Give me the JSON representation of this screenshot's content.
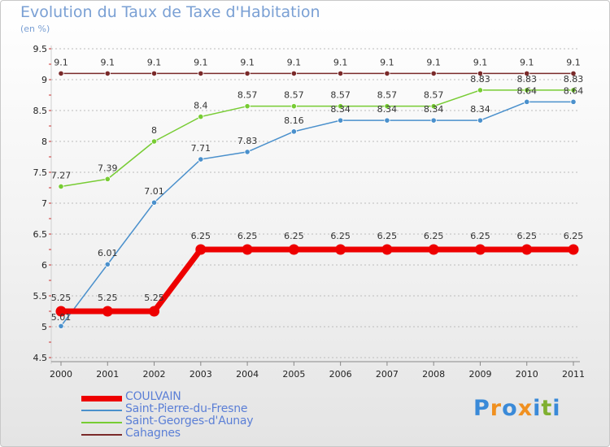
{
  "chart_data": {
    "type": "line",
    "title": "Evolution du Taux de Taxe d'Habitation",
    "subtitle": "(en %)",
    "xlabel": "",
    "ylabel": "",
    "categories": [
      "2000",
      "2001",
      "2002",
      "2003",
      "2004",
      "2005",
      "2006",
      "2007",
      "2008",
      "2009",
      "2010",
      "2011"
    ],
    "ylim": [
      4.5,
      9.5
    ],
    "yticks": [
      "4.5",
      "5",
      "5.5",
      "6",
      "6.5",
      "7",
      "7.5",
      "8",
      "8.5",
      "9",
      "9.5"
    ],
    "grid": "horizontal dashed",
    "legend_position": "bottom-left",
    "series": [
      {
        "name": "COULVAIN",
        "color": "#ee0000",
        "values": [
          5.25,
          5.25,
          5.25,
          6.25,
          6.25,
          6.25,
          6.25,
          6.25,
          6.25,
          6.25,
          6.25,
          6.25
        ],
        "labels": [
          "5.25",
          "5.25",
          "5.25",
          "6.25",
          "6.25",
          "6.25",
          "6.25",
          "6.25",
          "6.25",
          "6.25",
          "6.25",
          "6.25"
        ]
      },
      {
        "name": "Saint-Pierre-du-Fresne",
        "color": "#4a90cc",
        "values": [
          5.01,
          6.01,
          7.01,
          7.71,
          7.83,
          8.16,
          8.34,
          8.34,
          8.34,
          8.34,
          8.64,
          8.64
        ],
        "labels": [
          "5.01",
          "6.01",
          "7.01",
          "7.71",
          "7.83",
          "8.16",
          "8.34",
          "8.34",
          "8.34",
          "8.34",
          "8.64",
          "8.64"
        ]
      },
      {
        "name": "Saint-Georges-d'Aunay",
        "color": "#77cc33",
        "values": [
          7.27,
          7.39,
          8.0,
          8.4,
          8.57,
          8.57,
          8.57,
          8.57,
          8.57,
          8.83,
          8.83,
          8.83
        ],
        "labels": [
          "7.27",
          "7.39",
          "8",
          "8.4",
          "8.57",
          "8.57",
          "8.57",
          "8.57",
          "8.57",
          "8.83",
          "8.83",
          "8.83"
        ]
      },
      {
        "name": "Cahagnes",
        "color": "#7a2a2a",
        "values": [
          9.1,
          9.1,
          9.1,
          9.1,
          9.1,
          9.1,
          9.1,
          9.1,
          9.1,
          9.1,
          9.1,
          9.1
        ],
        "labels": [
          "9.1",
          "9.1",
          "9.1",
          "9.1",
          "9.1",
          "9.1",
          "9.1",
          "9.1",
          "9.1",
          "9.1",
          "9.1",
          "9.1"
        ]
      }
    ]
  },
  "logo": {
    "letters": [
      "P",
      "r",
      "o",
      "x",
      "i",
      "t",
      "i"
    ],
    "colors": [
      "#3a8ad8",
      "#f09020",
      "#3a8ad8",
      "#f09020",
      "#3a8ad8",
      "#80b030",
      "#3a8ad8"
    ]
  }
}
